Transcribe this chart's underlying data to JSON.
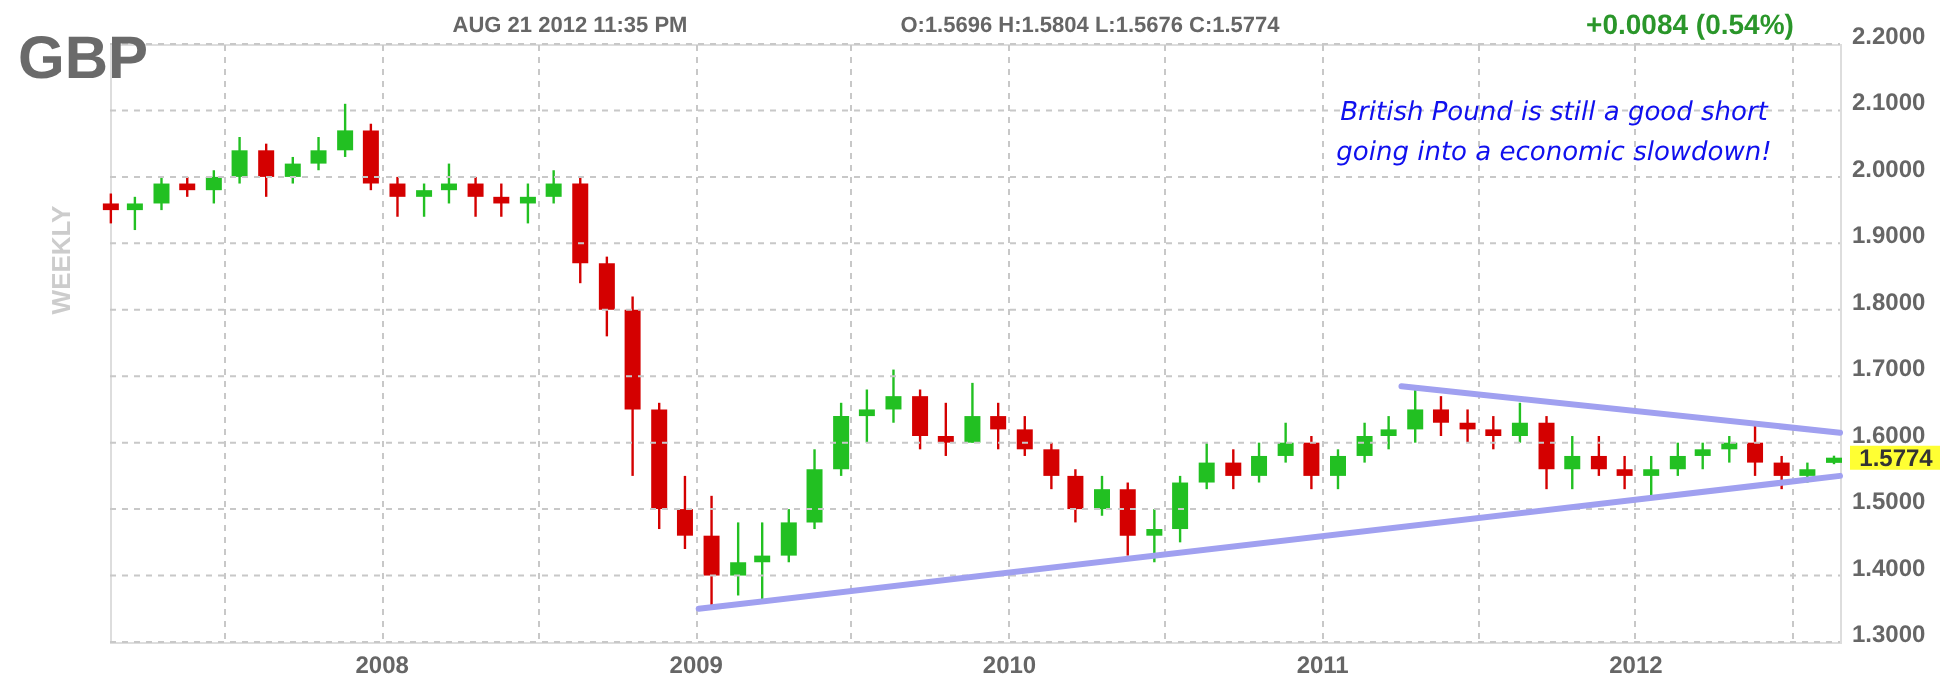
{
  "chart_data": {
    "type": "candlestick",
    "title": "GBP",
    "subtitle": "AUG 21 2012 11:35 PM",
    "ylabel": "WEEKLY",
    "x": [
      "2007-02-20",
      "2007-03-20",
      "2007-04-20",
      "2007-05-20",
      "2007-06-20",
      "2007-07-20",
      "2007-08-20",
      "2007-09-20",
      "2007-10-20",
      "2007-11-20",
      "2007-12-20",
      "2008-01-20",
      "2008-02-20",
      "2008-03-20",
      "2008-04-20",
      "2008-05-20",
      "2008-06-20",
      "2008-07-20",
      "2008-08-20",
      "2008-09-20",
      "2008-10-20",
      "2008-11-20",
      "2008-12-20",
      "2009-01-20",
      "2009-02-20",
      "2009-03-20",
      "2009-04-20",
      "2009-05-20",
      "2009-06-20",
      "2009-07-20",
      "2009-08-20",
      "2009-09-20",
      "2009-10-20",
      "2009-11-20",
      "2009-12-20",
      "2010-01-20",
      "2010-02-20",
      "2010-03-20",
      "2010-04-20",
      "2010-05-20",
      "2010-06-20",
      "2010-07-20",
      "2010-08-20",
      "2010-09-20",
      "2010-10-20",
      "2010-11-20",
      "2010-12-20",
      "2011-01-20",
      "2011-02-20",
      "2011-03-20",
      "2011-04-20",
      "2011-05-20",
      "2011-06-20",
      "2011-07-20",
      "2011-08-20",
      "2011-09-20",
      "2011-10-20",
      "2011-11-20",
      "2011-12-20",
      "2012-01-20",
      "2012-02-20",
      "2012-03-20",
      "2012-04-20",
      "2012-05-20",
      "2012-06-20",
      "2012-07-20",
      "2012-08-20"
    ],
    "ohlc": [
      [
        1.96,
        1.975,
        1.93,
        1.95
      ],
      [
        1.95,
        1.97,
        1.92,
        1.96
      ],
      [
        1.96,
        2.0,
        1.95,
        1.99
      ],
      [
        1.99,
        2.0,
        1.97,
        1.98
      ],
      [
        1.98,
        2.01,
        1.96,
        2.0
      ],
      [
        2.0,
        2.06,
        1.99,
        2.04
      ],
      [
        2.04,
        2.05,
        1.97,
        2.0
      ],
      [
        2.0,
        2.03,
        1.99,
        2.02
      ],
      [
        2.02,
        2.06,
        2.01,
        2.04
      ],
      [
        2.04,
        2.11,
        2.03,
        2.07
      ],
      [
        2.07,
        2.08,
        1.98,
        1.99
      ],
      [
        1.99,
        2.0,
        1.94,
        1.97
      ],
      [
        1.97,
        1.99,
        1.94,
        1.98
      ],
      [
        1.98,
        2.02,
        1.96,
        1.99
      ],
      [
        1.99,
        2.0,
        1.94,
        1.97
      ],
      [
        1.97,
        1.99,
        1.94,
        1.96
      ],
      [
        1.96,
        1.99,
        1.93,
        1.97
      ],
      [
        1.97,
        2.01,
        1.96,
        1.99
      ],
      [
        1.99,
        2.0,
        1.84,
        1.87
      ],
      [
        1.87,
        1.88,
        1.76,
        1.8
      ],
      [
        1.8,
        1.82,
        1.55,
        1.65
      ],
      [
        1.65,
        1.66,
        1.47,
        1.5
      ],
      [
        1.5,
        1.55,
        1.44,
        1.46
      ],
      [
        1.46,
        1.52,
        1.35,
        1.4
      ],
      [
        1.4,
        1.48,
        1.37,
        1.42
      ],
      [
        1.42,
        1.48,
        1.36,
        1.43
      ],
      [
        1.43,
        1.5,
        1.42,
        1.48
      ],
      [
        1.48,
        1.59,
        1.47,
        1.56
      ],
      [
        1.56,
        1.66,
        1.55,
        1.64
      ],
      [
        1.64,
        1.68,
        1.6,
        1.65
      ],
      [
        1.65,
        1.71,
        1.63,
        1.67
      ],
      [
        1.67,
        1.68,
        1.59,
        1.61
      ],
      [
        1.61,
        1.66,
        1.58,
        1.6
      ],
      [
        1.6,
        1.69,
        1.6,
        1.64
      ],
      [
        1.64,
        1.66,
        1.59,
        1.62
      ],
      [
        1.62,
        1.64,
        1.58,
        1.59
      ],
      [
        1.59,
        1.6,
        1.53,
        1.55
      ],
      [
        1.55,
        1.56,
        1.48,
        1.5
      ],
      [
        1.5,
        1.55,
        1.49,
        1.53
      ],
      [
        1.53,
        1.54,
        1.43,
        1.46
      ],
      [
        1.46,
        1.5,
        1.42,
        1.47
      ],
      [
        1.47,
        1.55,
        1.45,
        1.54
      ],
      [
        1.54,
        1.6,
        1.53,
        1.57
      ],
      [
        1.57,
        1.59,
        1.53,
        1.55
      ],
      [
        1.55,
        1.6,
        1.54,
        1.58
      ],
      [
        1.58,
        1.63,
        1.57,
        1.6
      ],
      [
        1.6,
        1.61,
        1.53,
        1.55
      ],
      [
        1.55,
        1.59,
        1.53,
        1.58
      ],
      [
        1.58,
        1.63,
        1.57,
        1.61
      ],
      [
        1.61,
        1.64,
        1.59,
        1.62
      ],
      [
        1.62,
        1.68,
        1.6,
        1.65
      ],
      [
        1.65,
        1.67,
        1.61,
        1.63
      ],
      [
        1.63,
        1.65,
        1.6,
        1.62
      ],
      [
        1.62,
        1.64,
        1.59,
        1.61
      ],
      [
        1.61,
        1.66,
        1.6,
        1.63
      ],
      [
        1.63,
        1.64,
        1.53,
        1.56
      ],
      [
        1.56,
        1.61,
        1.53,
        1.58
      ],
      [
        1.58,
        1.61,
        1.55,
        1.56
      ],
      [
        1.56,
        1.58,
        1.53,
        1.55
      ],
      [
        1.55,
        1.58,
        1.52,
        1.56
      ],
      [
        1.56,
        1.6,
        1.55,
        1.58
      ],
      [
        1.58,
        1.6,
        1.56,
        1.59
      ],
      [
        1.59,
        1.61,
        1.57,
        1.6
      ],
      [
        1.6,
        1.63,
        1.55,
        1.57
      ],
      [
        1.57,
        1.58,
        1.53,
        1.55
      ],
      [
        1.55,
        1.57,
        1.54,
        1.56
      ],
      [
        1.5696,
        1.5804,
        1.5676,
        1.5774
      ]
    ],
    "colors": [
      "#d40000",
      "#22c022",
      "#22c022",
      "#d40000",
      "#22c022",
      "#22c022",
      "#d40000",
      "#22c022",
      "#22c022",
      "#22c022",
      "#d40000",
      "#d40000",
      "#22c022",
      "#22c022",
      "#d40000",
      "#d40000",
      "#22c022",
      "#22c022",
      "#d40000",
      "#d40000",
      "#d40000",
      "#d40000",
      "#d40000",
      "#d40000",
      "#22c022",
      "#22c022",
      "#22c022",
      "#22c022",
      "#22c022",
      "#22c022",
      "#22c022",
      "#d40000",
      "#d40000",
      "#22c022",
      "#d40000",
      "#d40000",
      "#d40000",
      "#d40000",
      "#22c022",
      "#d40000",
      "#22c022",
      "#22c022",
      "#22c022",
      "#d40000",
      "#22c022",
      "#22c022",
      "#d40000",
      "#22c022",
      "#22c022",
      "#22c022",
      "#22c022",
      "#d40000",
      "#d40000",
      "#d40000",
      "#22c022",
      "#d40000",
      "#22c022",
      "#d40000",
      "#d40000",
      "#22c022",
      "#22c022",
      "#22c022",
      "#22c022",
      "#d40000",
      "#d40000",
      "#22c022",
      "#22c022"
    ],
    "series": [
      {
        "type": "line",
        "color": "#a0a0f0",
        "x": [
          "2009-01-05",
          "2012-08-27"
        ],
        "values": [
          1.35,
          1.55
        ]
      },
      {
        "type": "line",
        "color": "#a0a0f0",
        "x": [
          "2011-04-04",
          "2012-08-27"
        ],
        "values": [
          1.685,
          1.615
        ]
      }
    ],
    "xlim": [
      "2007-02-19",
      "2012-08-27"
    ],
    "xticks": [
      {
        "value": "2007-07-01",
        "label": null
      },
      {
        "value": "2008-01-01",
        "label": "2008"
      },
      {
        "value": "2008-07-01",
        "label": null
      },
      {
        "value": "2009-01-01",
        "label": "2009"
      },
      {
        "value": "2009-07-01",
        "label": null
      },
      {
        "value": "2010-01-01",
        "label": "2010"
      },
      {
        "value": "2010-07-01",
        "label": null
      },
      {
        "value": "2011-01-01",
        "label": "2011"
      },
      {
        "value": "2011-07-01",
        "label": null
      },
      {
        "value": "2012-01-01",
        "label": "2012"
      },
      {
        "value": "2012-07-01",
        "label": null
      }
    ],
    "ylim": [
      1.3,
      2.2
    ],
    "yticks": [
      {
        "value": 1.3,
        "label": "1.3000"
      },
      {
        "value": 1.4,
        "label": "1.4000"
      },
      {
        "value": 1.5,
        "label": "1.5000"
      },
      {
        "value": 1.6,
        "label": "1.6000"
      },
      {
        "value": 1.7,
        "label": "1.7000"
      },
      {
        "value": 1.8,
        "label": "1.8000"
      },
      {
        "value": 1.9,
        "label": "1.9000"
      },
      {
        "value": 2.0,
        "label": "2.0000"
      },
      {
        "value": 2.1,
        "label": "2.1000"
      },
      {
        "value": 2.2,
        "label": "2.2000"
      }
    ],
    "grid": true,
    "annotations": [
      "O:1.5696 H:1.5804 L:1.5676 C:1.5774",
      "+0.0084 (0.54%)",
      "British Pound is still a good short going into a economic slowdown!",
      {
        "text": "1.5774",
        "x": "2012-08-20",
        "y": 1.5774
      }
    ]
  }
}
